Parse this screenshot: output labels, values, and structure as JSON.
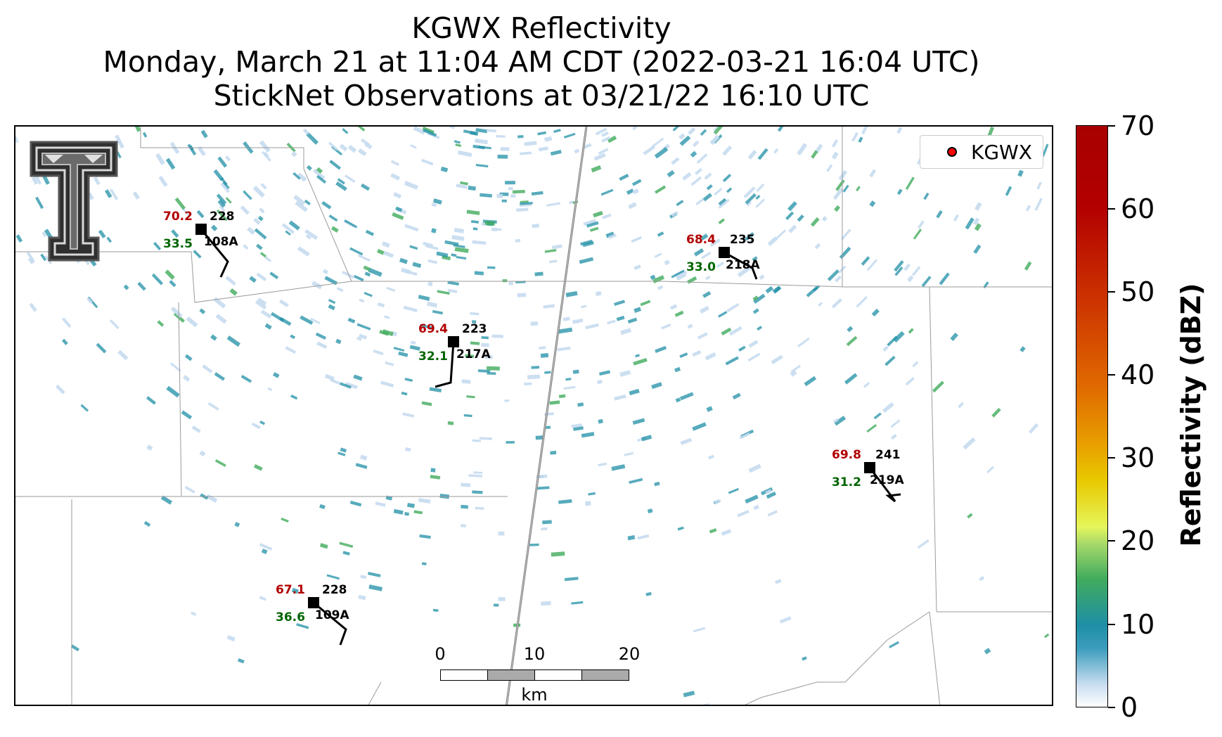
{
  "title": {
    "line1": "KGWX Reflectivity",
    "line2": "Monday, March 21 at 11:04 AM CDT (2022-03-21 16:04 UTC)",
    "line3": "StickNet Observations at 03/21/22 16:10 UTC"
  },
  "legend": {
    "label": "KGWX",
    "marker_color": "#ff0000"
  },
  "stations": [
    {
      "id": "108A",
      "temp": "70.2",
      "dew": "33.5",
      "pressure": "228",
      "wind_dir_deg": 145
    },
    {
      "id": "217A",
      "temp": "69.4",
      "dew": "32.1",
      "pressure": "223",
      "wind_dir_deg": 190
    },
    {
      "id": "218A",
      "temp": "68.4",
      "dew": "33.0",
      "pressure": "235",
      "wind_dir_deg": 120
    },
    {
      "id": "219A",
      "temp": "69.8",
      "dew": "31.2",
      "pressure": "241",
      "wind_dir_deg": 140
    },
    {
      "id": "109A",
      "temp": "67.1",
      "dew": "36.6",
      "pressure": "228",
      "wind_dir_deg": 150
    }
  ],
  "scale_bar": {
    "ticks": [
      "0",
      "10",
      "20"
    ],
    "unit": "km"
  },
  "colorbar": {
    "label": "Reflectivity (dBZ)",
    "ticks": [
      "0",
      "10",
      "20",
      "30",
      "40",
      "50",
      "60",
      "70"
    ],
    "min": 0,
    "max": 70
  },
  "colors": {
    "temperature": "#b20000",
    "dewpoint": "#006400",
    "county_lines": "#999999",
    "radar_light": "#c6dbef",
    "radar_teal": "#1f8fa6",
    "radar_green": "#41ab5d"
  },
  "logo": {
    "name": "texas-tech-double-t-logo"
  }
}
